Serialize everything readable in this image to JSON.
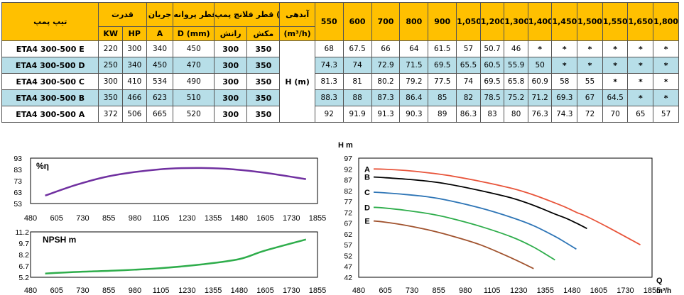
{
  "table": {
    "headers": {
      "type": "تیپ پمپ",
      "power": "قدرت",
      "current": "جریان",
      "impeller": "قطر پروانه",
      "flange": "قطر فلانچ پمپ (mm)",
      "flow_label": "آبدهی",
      "kw": "KW",
      "hp": "HP",
      "a": "A",
      "d": "D (mm)",
      "discharge": "رانش",
      "suction": "مکش",
      "flow_unit": "(m³/h)"
    },
    "flow_values": [
      "550",
      "600",
      "700",
      "800",
      "900",
      "1,050",
      "1,200",
      "1,300",
      "1,400",
      "1,450",
      "1,500",
      "1,550",
      "1,650",
      "1,800"
    ],
    "h_label": "H (m)",
    "rows": [
      {
        "model": "ETA4 300-500 E",
        "kw": "220",
        "hp": "300",
        "a": "340",
        "d": "450",
        "discharge": "300",
        "suction": "350",
        "h": [
          "68",
          "67.5",
          "66",
          "64",
          "61.5",
          "57",
          "50.7",
          "46",
          "*",
          "*",
          "*",
          "*",
          "*",
          "*"
        ]
      },
      {
        "model": "ETA4 300-500 D",
        "kw": "250",
        "hp": "340",
        "a": "450",
        "d": "470",
        "discharge": "300",
        "suction": "350",
        "h": [
          "74.3",
          "74",
          "72.9",
          "71.5",
          "69.5",
          "65.5",
          "60.5",
          "55.9",
          "50",
          "*",
          "*",
          "*",
          "*",
          "*"
        ]
      },
      {
        "model": "ETA4 300-500 C",
        "kw": "300",
        "hp": "410",
        "a": "534",
        "d": "490",
        "discharge": "300",
        "suction": "350",
        "h": [
          "81.3",
          "81",
          "80.2",
          "79.2",
          "77.5",
          "74",
          "69.5",
          "65.8",
          "60.9",
          "58",
          "55",
          "*",
          "*",
          "*"
        ]
      },
      {
        "model": "ETA4 300-500 B",
        "kw": "350",
        "hp": "466",
        "a": "623",
        "d": "510",
        "discharge": "300",
        "suction": "350",
        "h": [
          "88.3",
          "88",
          "87.3",
          "86.4",
          "85",
          "82",
          "78.5",
          "75.2",
          "71.2",
          "69.3",
          "67",
          "64.5",
          "*",
          "*"
        ]
      },
      {
        "model": "ETA4 300-500 A",
        "kw": "372",
        "hp": "506",
        "a": "665",
        "d": "520",
        "discharge": "300",
        "suction": "350",
        "h": [
          "92",
          "91.9",
          "91.3",
          "90.3",
          "89",
          "86.3",
          "83",
          "80",
          "76.3",
          "74.3",
          "72",
          "70",
          "65",
          "57"
        ]
      }
    ]
  },
  "chart_data": [
    {
      "type": "line",
      "title": "%η",
      "x_ticks": [
        "480",
        "605",
        "730",
        "855",
        "980",
        "1105",
        "1230",
        "1355",
        "1480",
        "1605",
        "1730",
        "1855"
      ],
      "xlim": [
        480,
        1855
      ],
      "y_ticks": [
        "53",
        "63",
        "73",
        "83",
        "93"
      ],
      "ylim": [
        53,
        93
      ],
      "grid": false,
      "colors": [
        "#7030A0"
      ],
      "series": [
        {
          "x": [
            550,
            700,
            850,
            1000,
            1150,
            1300,
            1450,
            1600,
            1800
          ],
          "y": [
            60,
            69.5,
            76.8,
            81.2,
            83.8,
            84.3,
            83.2,
            80.2,
            74.5
          ]
        }
      ]
    },
    {
      "type": "line",
      "title": "NPSH m",
      "x_ticks": [
        "480",
        "605",
        "730",
        "855",
        "980",
        "1105",
        "1230",
        "1355",
        "1480",
        "1605",
        "1730",
        "1855"
      ],
      "xlim": [
        480,
        1855
      ],
      "y_ticks": [
        "5.2",
        "6.7",
        "8.2",
        "9.7",
        "11.2"
      ],
      "ylim": [
        5.2,
        11.2
      ],
      "grid": false,
      "colors": [
        "#2EAD4B"
      ],
      "series": [
        {
          "x": [
            550,
            700,
            900,
            1100,
            1300,
            1480,
            1600,
            1800
          ],
          "y": [
            5.7,
            5.9,
            6.1,
            6.4,
            6.9,
            7.6,
            8.7,
            10.2
          ]
        }
      ]
    },
    {
      "type": "line",
      "ylabel": "H m",
      "xlabel": "Q",
      "x_unit": "m³/h",
      "x_ticks": [
        "480",
        "605",
        "730",
        "855",
        "980",
        "1105",
        "1230",
        "1355",
        "1480",
        "1605",
        "1730",
        "1855"
      ],
      "xlim": [
        480,
        1855
      ],
      "y_ticks": [
        "42",
        "47",
        "52",
        "57",
        "62",
        "67",
        "72",
        "77",
        "82",
        "87",
        "92",
        "97"
      ],
      "ylim": [
        42,
        97
      ],
      "grid": false,
      "series": [
        {
          "name": "A",
          "color": "#E8543A",
          "x": [
            550,
            600,
            700,
            800,
            900,
            1050,
            1200,
            1300,
            1400,
            1450,
            1500,
            1550,
            1650,
            1800
          ],
          "y": [
            92,
            91.9,
            91.3,
            90.3,
            89,
            86.3,
            83,
            80,
            76.3,
            74.3,
            72,
            70,
            65,
            57
          ]
        },
        {
          "name": "B",
          "color": "#000000",
          "x": [
            550,
            600,
            700,
            800,
            900,
            1050,
            1200,
            1300,
            1400,
            1450,
            1500,
            1550
          ],
          "y": [
            88.3,
            88,
            87.3,
            86.4,
            85,
            82,
            78.5,
            75.2,
            71.2,
            69.3,
            67,
            64.5
          ]
        },
        {
          "name": "C",
          "color": "#2E75B6",
          "x": [
            550,
            600,
            700,
            800,
            900,
            1050,
            1200,
            1300,
            1400,
            1450,
            1500
          ],
          "y": [
            81.3,
            81,
            80.2,
            79.2,
            77.5,
            74,
            69.5,
            65.8,
            60.9,
            58,
            55
          ]
        },
        {
          "name": "D",
          "color": "#2EAD4B",
          "x": [
            550,
            600,
            700,
            800,
            900,
            1050,
            1200,
            1300,
            1400
          ],
          "y": [
            74.3,
            74,
            72.9,
            71.5,
            69.5,
            65.5,
            60.5,
            55.9,
            50
          ]
        },
        {
          "name": "E",
          "color": "#A0522D",
          "x": [
            550,
            600,
            700,
            800,
            900,
            1050,
            1200,
            1300
          ],
          "y": [
            68,
            67.5,
            66,
            64,
            61.5,
            57,
            50.7,
            46
          ]
        }
      ]
    }
  ]
}
